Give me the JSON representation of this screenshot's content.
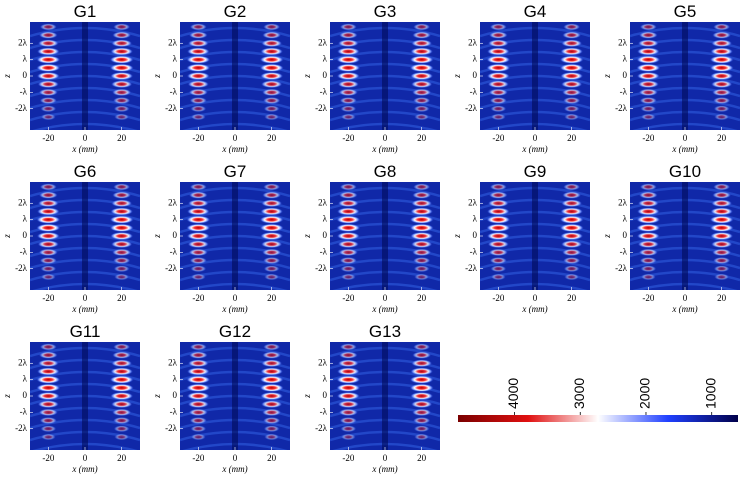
{
  "chart_data": [
    {
      "type": "heatmap",
      "title": "G1",
      "xlabel": "x (mm)",
      "ylabel": "z",
      "xlim": [
        -30,
        30
      ],
      "ylim": [
        -3.3,
        3.3
      ],
      "xticks": [
        -20,
        0,
        20
      ],
      "yticks": [
        {
          "value": 2,
          "label": "2λ"
        },
        {
          "value": 1,
          "label": "λ"
        },
        0,
        {
          "value": -1,
          "label": "-λ"
        },
        {
          "value": -2,
          "label": "-2λ"
        }
      ]
    },
    {
      "type": "heatmap",
      "title": "G2",
      "xlabel": "x (mm)",
      "ylabel": "z",
      "xlim": [
        -30,
        30
      ],
      "ylim": [
        -3.3,
        3.3
      ],
      "xticks": [
        -20,
        0,
        20
      ],
      "yticks": [
        {
          "value": 2,
          "label": "2λ"
        },
        {
          "value": 1,
          "label": "λ"
        },
        0,
        {
          "value": -1,
          "label": "-λ"
        },
        {
          "value": -2,
          "label": "-2λ"
        }
      ]
    },
    {
      "type": "heatmap",
      "title": "G3",
      "xlabel": "x (mm)",
      "ylabel": "z",
      "xlim": [
        -30,
        30
      ],
      "ylim": [
        -3.3,
        3.3
      ],
      "xticks": [
        -20,
        0,
        20
      ],
      "yticks": [
        {
          "value": 2,
          "label": "2λ"
        },
        {
          "value": 1,
          "label": "λ"
        },
        0,
        {
          "value": -1,
          "label": "-λ"
        },
        {
          "value": -2,
          "label": "-2λ"
        }
      ]
    },
    {
      "type": "heatmap",
      "title": "G4",
      "xlabel": "x (mm)",
      "ylabel": "z",
      "xlim": [
        -30,
        30
      ],
      "ylim": [
        -3.3,
        3.3
      ],
      "xticks": [
        -20,
        0,
        20
      ],
      "yticks": [
        {
          "value": 2,
          "label": "2λ"
        },
        {
          "value": 1,
          "label": "λ"
        },
        0,
        {
          "value": -1,
          "label": "-λ"
        },
        {
          "value": -2,
          "label": "-2λ"
        }
      ]
    },
    {
      "type": "heatmap",
      "title": "G5",
      "xlabel": "x (mm)",
      "ylabel": "z",
      "xlim": [
        -30,
        30
      ],
      "ylim": [
        -3.3,
        3.3
      ],
      "xticks": [
        -20,
        0,
        20
      ],
      "yticks": [
        {
          "value": 2,
          "label": "2λ"
        },
        {
          "value": 1,
          "label": "λ"
        },
        0,
        {
          "value": -1,
          "label": "-λ"
        },
        {
          "value": -2,
          "label": "-2λ"
        }
      ]
    },
    {
      "type": "heatmap",
      "title": "G6",
      "xlabel": "x (mm)",
      "ylabel": "z",
      "xlim": [
        -30,
        30
      ],
      "ylim": [
        -3.3,
        3.3
      ],
      "xticks": [
        -20,
        0,
        20
      ],
      "yticks": [
        {
          "value": 2,
          "label": "2λ"
        },
        {
          "value": 1,
          "label": "λ"
        },
        0,
        {
          "value": -1,
          "label": "-λ"
        },
        {
          "value": -2,
          "label": "-2λ"
        }
      ]
    },
    {
      "type": "heatmap",
      "title": "G7",
      "xlabel": "x (mm)",
      "ylabel": "z",
      "xlim": [
        -30,
        30
      ],
      "ylim": [
        -3.3,
        3.3
      ],
      "xticks": [
        -20,
        0,
        20
      ],
      "yticks": [
        {
          "value": 2,
          "label": "2λ"
        },
        {
          "value": 1,
          "label": "λ"
        },
        0,
        {
          "value": -1,
          "label": "-λ"
        },
        {
          "value": -2,
          "label": "-2λ"
        }
      ]
    },
    {
      "type": "heatmap",
      "title": "G8",
      "xlabel": "x (mm)",
      "ylabel": "z",
      "xlim": [
        -30,
        30
      ],
      "ylim": [
        -3.3,
        3.3
      ],
      "xticks": [
        -20,
        0,
        20
      ],
      "yticks": [
        {
          "value": 2,
          "label": "2λ"
        },
        {
          "value": 1,
          "label": "λ"
        },
        0,
        {
          "value": -1,
          "label": "-λ"
        },
        {
          "value": -2,
          "label": "-2λ"
        }
      ]
    },
    {
      "type": "heatmap",
      "title": "G9",
      "xlabel": "x (mm)",
      "ylabel": "z",
      "xlim": [
        -30,
        30
      ],
      "ylim": [
        -3.3,
        3.3
      ],
      "xticks": [
        -20,
        0,
        20
      ],
      "yticks": [
        {
          "value": 2,
          "label": "2λ"
        },
        {
          "value": 1,
          "label": "λ"
        },
        0,
        {
          "value": -1,
          "label": "-λ"
        },
        {
          "value": -2,
          "label": "-2λ"
        }
      ]
    },
    {
      "type": "heatmap",
      "title": "G10",
      "xlabel": "x (mm)",
      "ylabel": "z",
      "xlim": [
        -30,
        30
      ],
      "ylim": [
        -3.3,
        3.3
      ],
      "xticks": [
        -20,
        0,
        20
      ],
      "yticks": [
        {
          "value": 2,
          "label": "2λ"
        },
        {
          "value": 1,
          "label": "λ"
        },
        0,
        {
          "value": -1,
          "label": "-λ"
        },
        {
          "value": -2,
          "label": "-2λ"
        }
      ]
    },
    {
      "type": "heatmap",
      "title": "G11",
      "xlabel": "x (mm)",
      "ylabel": "z",
      "xlim": [
        -30,
        30
      ],
      "ylim": [
        -3.3,
        3.3
      ],
      "xticks": [
        -20,
        0,
        20
      ],
      "yticks": [
        {
          "value": 2,
          "label": "2λ"
        },
        {
          "value": 1,
          "label": "λ"
        },
        0,
        {
          "value": -1,
          "label": "-λ"
        },
        {
          "value": -2,
          "label": "-2λ"
        }
      ]
    },
    {
      "type": "heatmap",
      "title": "G12",
      "xlabel": "x (mm)",
      "ylabel": "z",
      "xlim": [
        -30,
        30
      ],
      "ylim": [
        -3.3,
        3.3
      ],
      "xticks": [
        -20,
        0,
        20
      ],
      "yticks": [
        {
          "value": 2,
          "label": "2λ"
        },
        {
          "value": 1,
          "label": "λ"
        },
        0,
        {
          "value": -1,
          "label": "-λ"
        },
        {
          "value": -2,
          "label": "-2λ"
        }
      ]
    },
    {
      "type": "heatmap",
      "title": "G13",
      "xlabel": "x (mm)",
      "ylabel": "z",
      "xlim": [
        -30,
        30
      ],
      "ylim": [
        -3.3,
        3.3
      ],
      "xticks": [
        -20,
        0,
        20
      ],
      "yticks": [
        {
          "value": 2,
          "label": "2λ"
        },
        {
          "value": 1,
          "label": "λ"
        },
        0,
        {
          "value": -1,
          "label": "-λ"
        },
        {
          "value": -2,
          "label": "-2λ"
        }
      ]
    },
    {
      "type": "colorbar",
      "xlim": [
        4860,
        600
      ],
      "xticks": [
        4000,
        3000,
        2000,
        1000
      ],
      "colors": [
        "#7a0000",
        "#e01010",
        "#ffffff",
        "#2040ff",
        "#00004a"
      ]
    }
  ]
}
